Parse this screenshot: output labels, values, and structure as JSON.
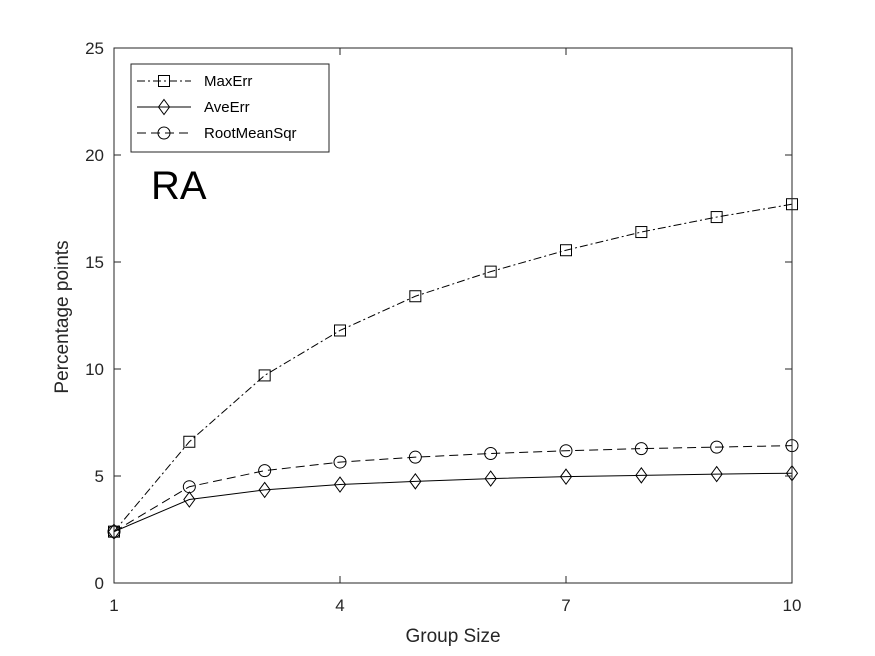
{
  "chart_data": {
    "type": "line",
    "title": "",
    "xlabel": "Group Size",
    "ylabel": "Percentage points",
    "xlim": [
      1,
      10
    ],
    "ylim": [
      0,
      25
    ],
    "xticks": [
      1,
      4,
      7,
      10
    ],
    "yticks": [
      0,
      5,
      10,
      15,
      20,
      25
    ],
    "grid": false,
    "legend_position": "top-left",
    "annotation": "RA",
    "x": [
      1,
      2,
      3,
      4,
      5,
      6,
      7,
      8,
      9,
      10
    ],
    "series": [
      {
        "name": "MaxErr",
        "marker": "square",
        "line_style": "dash-dot",
        "values": [
          2.4,
          6.6,
          9.7,
          11.8,
          13.4,
          14.55,
          15.55,
          16.4,
          17.1,
          17.7
        ]
      },
      {
        "name": "AveErr",
        "marker": "diamond",
        "line_style": "solid",
        "values": [
          2.4,
          3.9,
          4.35,
          4.6,
          4.75,
          4.88,
          4.97,
          5.03,
          5.09,
          5.13
        ]
      },
      {
        "name": "RootMeanSqr",
        "marker": "circle",
        "line_style": "dashed",
        "values": [
          2.4,
          4.5,
          5.25,
          5.65,
          5.88,
          6.05,
          6.18,
          6.28,
          6.35,
          6.42
        ]
      }
    ],
    "colors": {
      "lines": "#000000",
      "axes": "#262626",
      "background": "#ffffff"
    }
  }
}
